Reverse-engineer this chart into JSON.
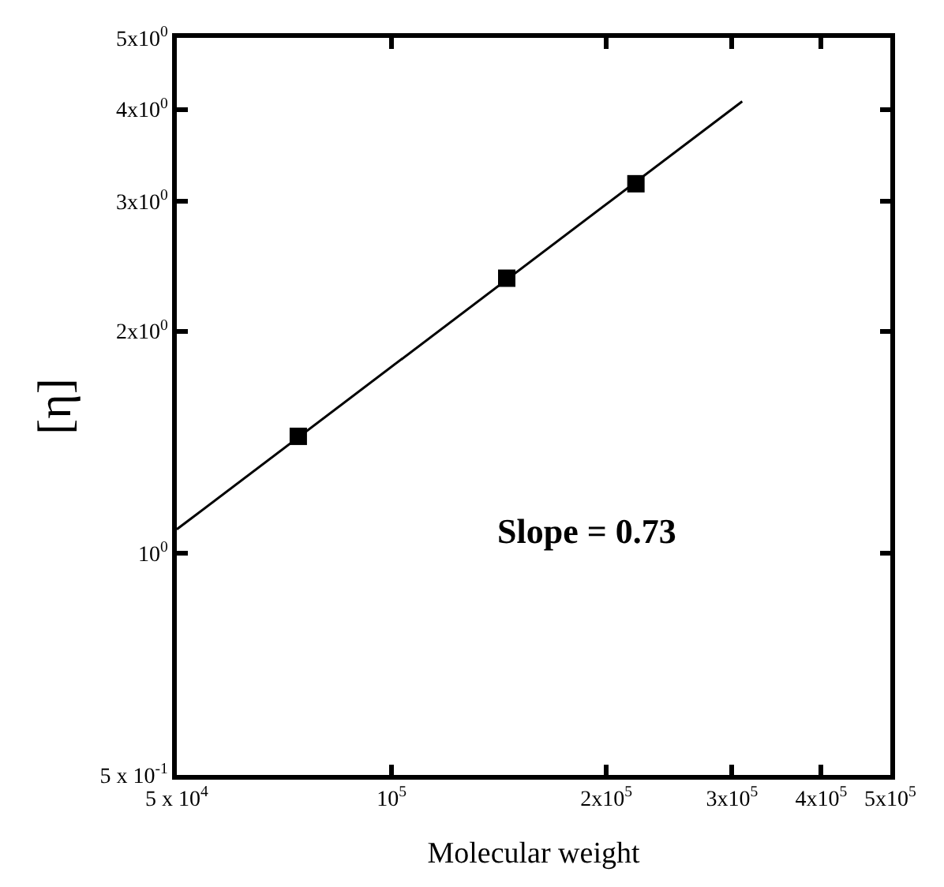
{
  "chart_data": {
    "type": "scatter",
    "xlabel": "Molecular weight",
    "ylabel": "[η]",
    "log": "xy",
    "xlim": [
      50000,
      500000
    ],
    "ylim": [
      0.5,
      5
    ],
    "xticks": [
      {
        "value": 50000,
        "label": "5 x 10$^{4}$"
      },
      {
        "value": 100000,
        "label": "10$^{5}$"
      },
      {
        "value": 200000,
        "label": "2x10$^{5}$"
      },
      {
        "value": 300000,
        "label": "3x10$^{5}$"
      },
      {
        "value": 400000,
        "label": "4x10$^{5}$"
      },
      {
        "value": 500000,
        "label": "5x10$^{5}$"
      }
    ],
    "yticks": [
      {
        "value": 0.5,
        "label": "5 x 10$^{-1}$"
      },
      {
        "value": 1,
        "label": "10$^{0}$"
      },
      {
        "value": 2,
        "label": "2x10$^{0}$"
      },
      {
        "value": 3,
        "label": "3x10$^{0}$"
      },
      {
        "value": 4,
        "label": "4x10$^{0}$"
      },
      {
        "value": 5,
        "label": "5x10$^{0}$"
      }
    ],
    "series": [
      {
        "marker": "square",
        "color": "#000000",
        "x": [
          74000,
          145000,
          220000
        ],
        "values": [
          1.44,
          2.36,
          3.17
        ]
      },
      {
        "type": "line",
        "marker": "none",
        "line_style": "solid",
        "color": "#000000",
        "x": [
          50000,
          310000
        ],
        "values": [
          1.077,
          4.1
        ]
      }
    ],
    "annotations": [
      "Slope = 0.73"
    ]
  }
}
